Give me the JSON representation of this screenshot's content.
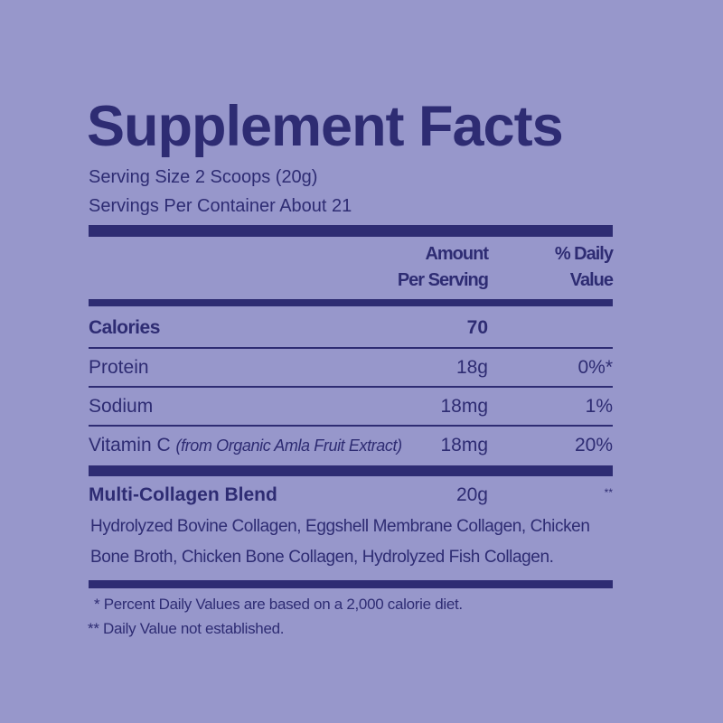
{
  "title": "Supplement Facts",
  "serving_size": "Serving Size 2 Scoops (20g)",
  "servings_per_container": "Servings Per Container About 21",
  "header": {
    "amount_line1": "Amount",
    "amount_line2": "Per Serving",
    "dv_line1": "% Daily",
    "dv_line2": "Value"
  },
  "rows": [
    {
      "name": "Calories",
      "amount": "70",
      "dv": ""
    },
    {
      "name": "Protein",
      "amount": "18g",
      "dv": "0%*"
    },
    {
      "name": "Sodium",
      "amount": "18mg",
      "dv": "1%"
    },
    {
      "name": "Vitamin C",
      "note": "(from Organic Amla Fruit Extract)",
      "amount": "18mg",
      "dv": "20%"
    }
  ],
  "blend": {
    "name": "Multi-Collagen Blend",
    "amount": "20g",
    "dv": "**",
    "ingredients_line1": "Hydrolyzed Bovine Collagen, Eggshell Membrane Collagen, Chicken",
    "ingredients_line2": "Bone Broth, Chicken Bone Collagen, Hydrolyzed Fish Collagen."
  },
  "footnotes": [
    "* Percent Daily Values are based on a 2,000 calorie diet.",
    "** Daily Value not established."
  ],
  "colors": {
    "background": "#9797cb",
    "ink": "#2e2c73"
  }
}
